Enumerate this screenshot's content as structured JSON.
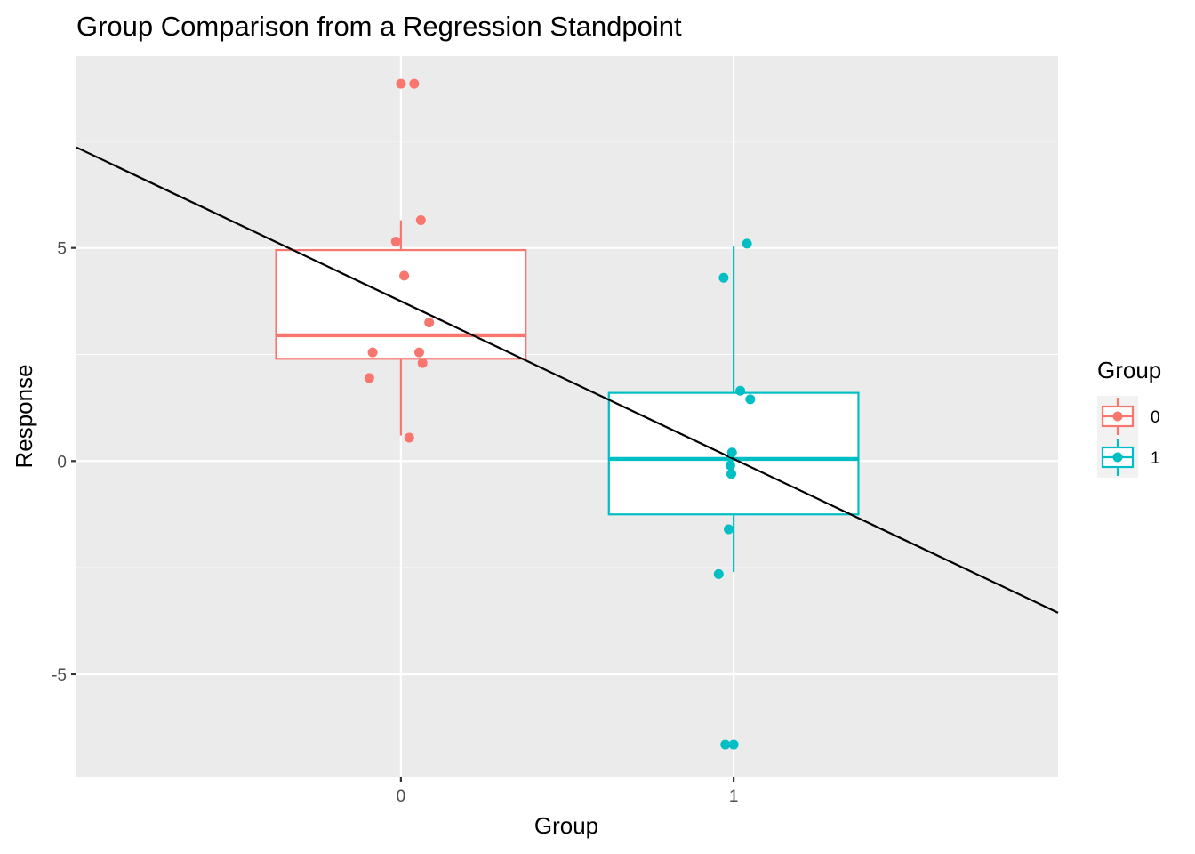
{
  "chart_data": {
    "type": "boxplot",
    "title": "Group Comparison from a Regression Standpoint",
    "xlabel": "Group",
    "ylabel": "Response",
    "categories": [
      "0",
      "1"
    ],
    "xlim": [
      -0.975,
      1.975
    ],
    "ylim": [
      -7.4,
      9.5
    ],
    "y_ticks": [
      -5,
      0,
      5
    ],
    "y_tick_labels": [
      "-5",
      "0",
      "5"
    ],
    "x_ticks": [
      0,
      1
    ],
    "x_tick_labels": [
      "0",
      "1"
    ],
    "grid": true,
    "legend": {
      "title": "Group",
      "position": "right",
      "entries": [
        {
          "label": "0",
          "color": "#F8766D"
        },
        {
          "label": "1",
          "color": "#00BFC4"
        }
      ]
    },
    "series": [
      {
        "name": "0",
        "color": "#F8766D",
        "x": 0,
        "box": {
          "lower_whisker": 0.6,
          "q1": 2.4,
          "median": 2.95,
          "q3": 4.95,
          "upper_whisker": 5.65
        },
        "points": [
          {
            "x": 0.0,
            "y": 8.85
          },
          {
            "x": 0.04,
            "y": 8.85
          },
          {
            "x": 0.06,
            "y": 5.65
          },
          {
            "x": -0.015,
            "y": 5.15
          },
          {
            "x": 0.01,
            "y": 4.35
          },
          {
            "x": 0.085,
            "y": 3.25
          },
          {
            "x": -0.085,
            "y": 2.55
          },
          {
            "x": 0.055,
            "y": 2.55
          },
          {
            "x": 0.065,
            "y": 2.3
          },
          {
            "x": -0.095,
            "y": 1.95
          },
          {
            "x": 0.025,
            "y": 0.55
          }
        ]
      },
      {
        "name": "1",
        "color": "#00BFC4",
        "x": 1,
        "box": {
          "lower_whisker": -2.6,
          "q1": -1.25,
          "median": 0.05,
          "q3": 1.6,
          "upper_whisker": 5.05
        },
        "points": [
          {
            "x": 1.04,
            "y": 5.1
          },
          {
            "x": 0.97,
            "y": 4.3
          },
          {
            "x": 1.02,
            "y": 1.65
          },
          {
            "x": 1.05,
            "y": 1.45
          },
          {
            "x": 0.995,
            "y": 0.2
          },
          {
            "x": 0.99,
            "y": -0.1
          },
          {
            "x": 0.993,
            "y": -0.3
          },
          {
            "x": 0.985,
            "y": -1.6
          },
          {
            "x": 0.955,
            "y": -2.65
          },
          {
            "x": 0.975,
            "y": -6.65
          },
          {
            "x": 1.0,
            "y": -6.65
          }
        ]
      }
    ],
    "regression_line": {
      "color": "#000000",
      "intercept": 3.75,
      "slope": -3.7
    }
  }
}
